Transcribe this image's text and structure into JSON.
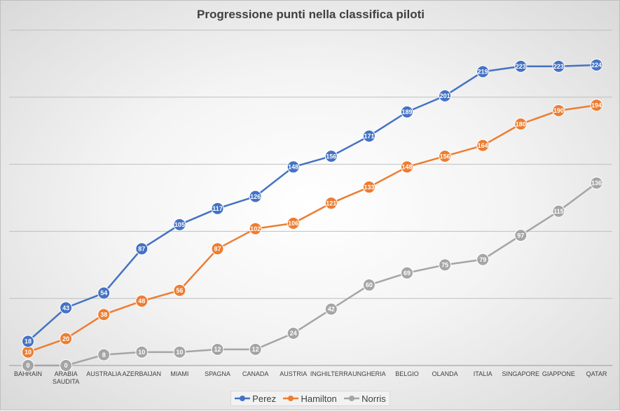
{
  "chart_data": {
    "type": "line",
    "title": "Progressione punti nella classifica piloti",
    "categories": [
      "BAHRAIN",
      "ARABIA SAUDITA",
      "AUSTRALIA",
      "AZERBAIJAN",
      "MIAMI",
      "SPAGNA",
      "CANADA",
      "AUSTRIA",
      "INGHILTERRA",
      "UNGHERIA",
      "BELGIO",
      "OLANDA",
      "ITALIA",
      "SINGAPORE",
      "GIAPPONE",
      "QATAR"
    ],
    "series": [
      {
        "name": "Perez",
        "color": "#4472c4",
        "values": [
          18,
          43,
          54,
          87,
          105,
          117,
          126,
          148,
          156,
          171,
          189,
          201,
          219,
          223,
          223,
          224
        ]
      },
      {
        "name": "Hamilton",
        "color": "#ed7d31",
        "values": [
          10,
          20,
          38,
          48,
          56,
          87,
          102,
          106,
          121,
          133,
          148,
          156,
          164,
          180,
          190,
          194
        ]
      },
      {
        "name": "Norris",
        "color": "#a5a5a5",
        "values": [
          0,
          0,
          8,
          10,
          10,
          12,
          12,
          24,
          42,
          60,
          69,
          75,
          79,
          97,
          115,
          136
        ]
      }
    ],
    "ylim": [
      0,
      250
    ],
    "y_gridlines": [
      0,
      50,
      100,
      150,
      200,
      250
    ],
    "y_tick_labels_shown": false,
    "grid": true,
    "data_labels": true,
    "legend_position": "bottom"
  }
}
